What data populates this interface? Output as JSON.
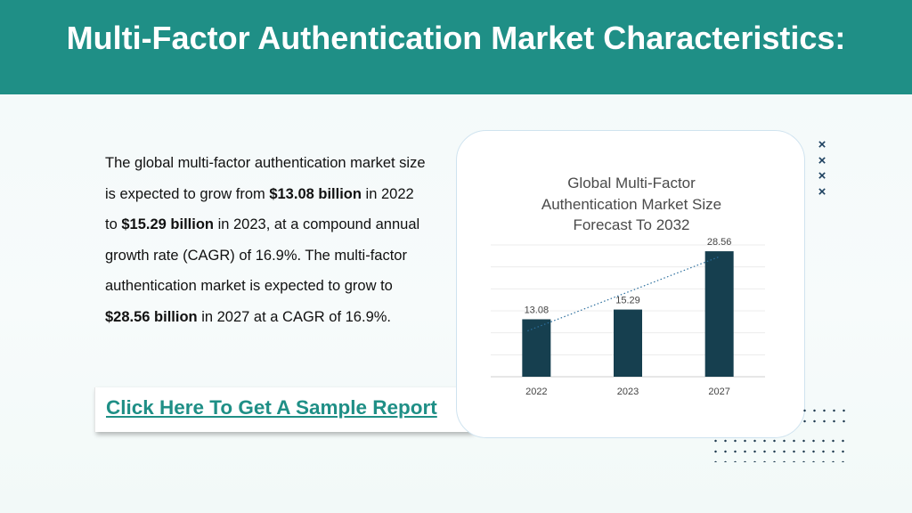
{
  "header": {
    "title": "Multi-Factor Authentication Market Characteristics:"
  },
  "body": {
    "t1": "The global multi-factor authentication market size is expected to grow from ",
    "v1": "$13.08 billion",
    "t2": " in 2022 to ",
    "v2": "$15.29 billion",
    "t3": " in 2023, at a compound annual growth rate (CAGR) of 16.9%. The multi-factor authentication market is expected to grow to ",
    "v3": "$28.56 billion",
    "t4": " in 2027 at a CAGR of 16.9%."
  },
  "cta": {
    "label": "Click Here To Get A Sample Report"
  },
  "chart": {
    "title_line1": "Global Multi-Factor",
    "title_line2": "Authentication Market Size",
    "title_line3": "Forecast To 2032"
  },
  "decor": {
    "x_mark": "×"
  },
  "chart_data": {
    "type": "bar",
    "title": "Global Multi-Factor Authentication Market Size Forecast To 2032",
    "categories": [
      "2022",
      "2023",
      "2027"
    ],
    "values": [
      13.08,
      15.29,
      28.56
    ],
    "data_labels": [
      "13.08",
      "15.29",
      "28.56"
    ],
    "xlabel": "",
    "ylabel": "",
    "ylim": [
      0,
      30
    ],
    "grid": true,
    "trendline": "linear, dotted",
    "bar_color": "#163f4f"
  }
}
